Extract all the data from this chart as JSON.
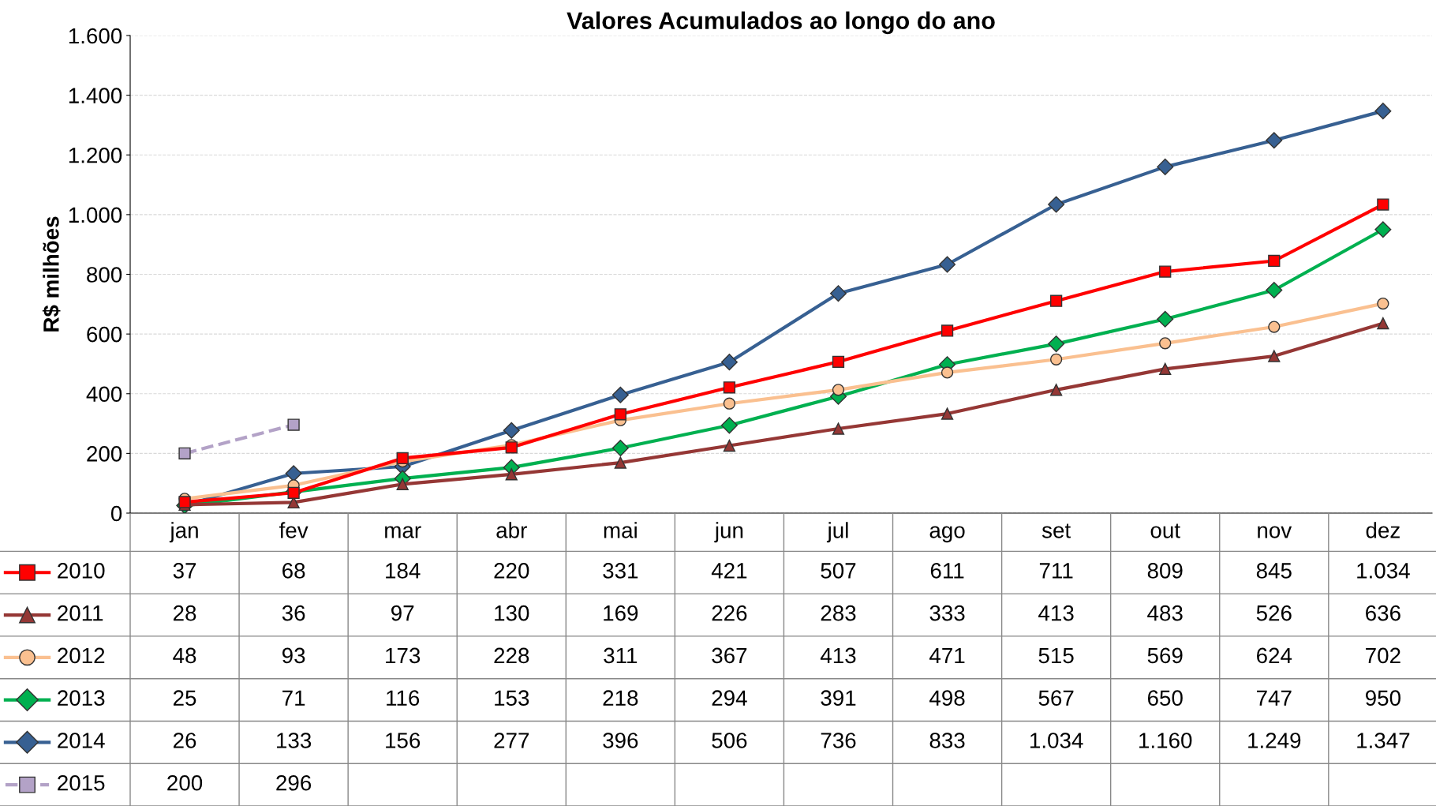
{
  "chart_data": {
    "type": "line",
    "title": "Valores Acumulados ao longo do ano",
    "ylabel": "R$ milhões",
    "categories": [
      "jan",
      "fev",
      "mar",
      "abr",
      "mai",
      "jun",
      "jul",
      "ago",
      "set",
      "out",
      "nov",
      "dez"
    ],
    "ylim": [
      0,
      1600
    ],
    "yticks": [
      0,
      {
        "value": 200,
        "label": "200"
      },
      {
        "value": 400,
        "label": "400"
      },
      {
        "value": 600,
        "label": "600"
      },
      {
        "value": 800,
        "label": "800"
      },
      {
        "value": 1000,
        "label": "1.000"
      },
      {
        "value": 1200,
        "label": "1.200"
      },
      {
        "value": 1400,
        "label": "1.400"
      },
      {
        "value": 1600,
        "label": "1.600"
      }
    ],
    "grid": "y",
    "legend": "bottom",
    "series": [
      {
        "name": "2010",
        "color": "#ff0000",
        "marker": "square",
        "line_style": "solid",
        "values": [
          37,
          68,
          184,
          220,
          331,
          421,
          507,
          611,
          711,
          809,
          845,
          1034
        ],
        "value_labels": [
          "37",
          "68",
          "184",
          "220",
          "331",
          "421",
          "507",
          "611",
          "711",
          "809",
          "845",
          "1.034"
        ]
      },
      {
        "name": "2011",
        "color": "#953735",
        "marker": "triangle",
        "line_style": "solid",
        "values": [
          28,
          36,
          97,
          130,
          169,
          226,
          283,
          333,
          413,
          483,
          526,
          636
        ],
        "value_labels": [
          "28",
          "36",
          "97",
          "130",
          "169",
          "226",
          "283",
          "333",
          "413",
          "483",
          "526",
          "636"
        ]
      },
      {
        "name": "2012",
        "color": "#fac090",
        "marker": "circle",
        "line_style": "solid",
        "values": [
          48,
          93,
          173,
          228,
          311,
          367,
          413,
          471,
          515,
          569,
          624,
          702
        ],
        "value_labels": [
          "48",
          "93",
          "173",
          "228",
          "311",
          "367",
          "413",
          "471",
          "515",
          "569",
          "624",
          "702"
        ]
      },
      {
        "name": "2013",
        "color": "#00b050",
        "marker": "diamond",
        "line_style": "solid",
        "values": [
          25,
          71,
          116,
          153,
          218,
          294,
          391,
          498,
          567,
          650,
          747,
          950
        ],
        "value_labels": [
          "25",
          "71",
          "116",
          "153",
          "218",
          "294",
          "391",
          "498",
          "567",
          "650",
          "747",
          "950"
        ]
      },
      {
        "name": "2014",
        "color": "#376092",
        "marker": "diamond",
        "line_style": "solid",
        "values": [
          26,
          133,
          156,
          277,
          396,
          506,
          736,
          833,
          1034,
          1160,
          1249,
          1347
        ],
        "value_labels": [
          "26",
          "133",
          "156",
          "277",
          "396",
          "506",
          "736",
          "833",
          "1.034",
          "1.160",
          "1.249",
          "1.347"
        ]
      },
      {
        "name": "2015",
        "color": "#b3a2c7",
        "marker": "square",
        "line_style": "dashed",
        "values": [
          200,
          296,
          null,
          null,
          null,
          null,
          null,
          null,
          null,
          null,
          null,
          null
        ],
        "value_labels": [
          "200",
          "296",
          null,
          null,
          null,
          null,
          null,
          null,
          null,
          null,
          null,
          null
        ]
      }
    ]
  }
}
